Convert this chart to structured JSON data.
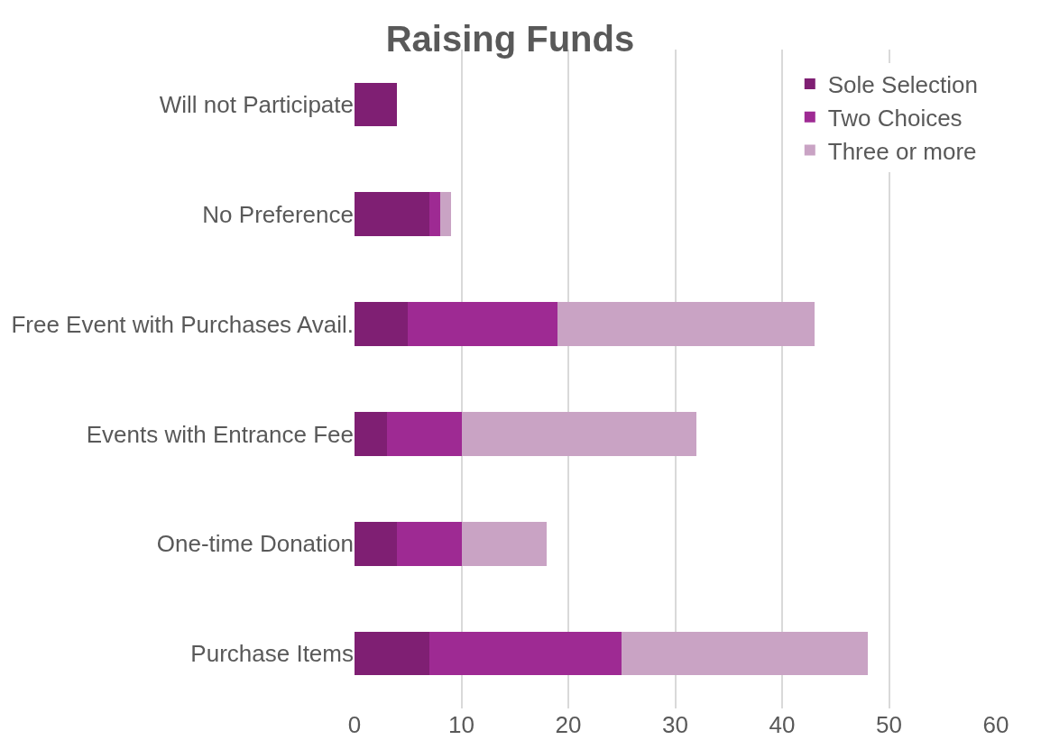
{
  "chart_data": {
    "type": "bar",
    "title": "Raising Funds",
    "orientation": "horizontal",
    "stacked": true,
    "categories": [
      "Will not Participate",
      "No Preference",
      "Free Event with Purchases Avail.",
      "Events with Entrance Fee",
      "One-time Donation",
      "Purchase Items"
    ],
    "series": [
      {
        "name": "Sole Selection",
        "color": "#7f1f73",
        "values": [
          4,
          7,
          5,
          3,
          4,
          7
        ]
      },
      {
        "name": "Two Choices",
        "color": "#9e2a93",
        "values": [
          0,
          1,
          14,
          7,
          6,
          18
        ]
      },
      {
        "name": "Three or more",
        "color": "#c9a3c4",
        "values": [
          0,
          1,
          24,
          22,
          8,
          23
        ]
      }
    ],
    "xlim": [
      0,
      60
    ],
    "xticks": [
      0,
      10,
      20,
      30,
      40,
      50,
      60
    ],
    "grid": "x",
    "legend": "top right"
  }
}
